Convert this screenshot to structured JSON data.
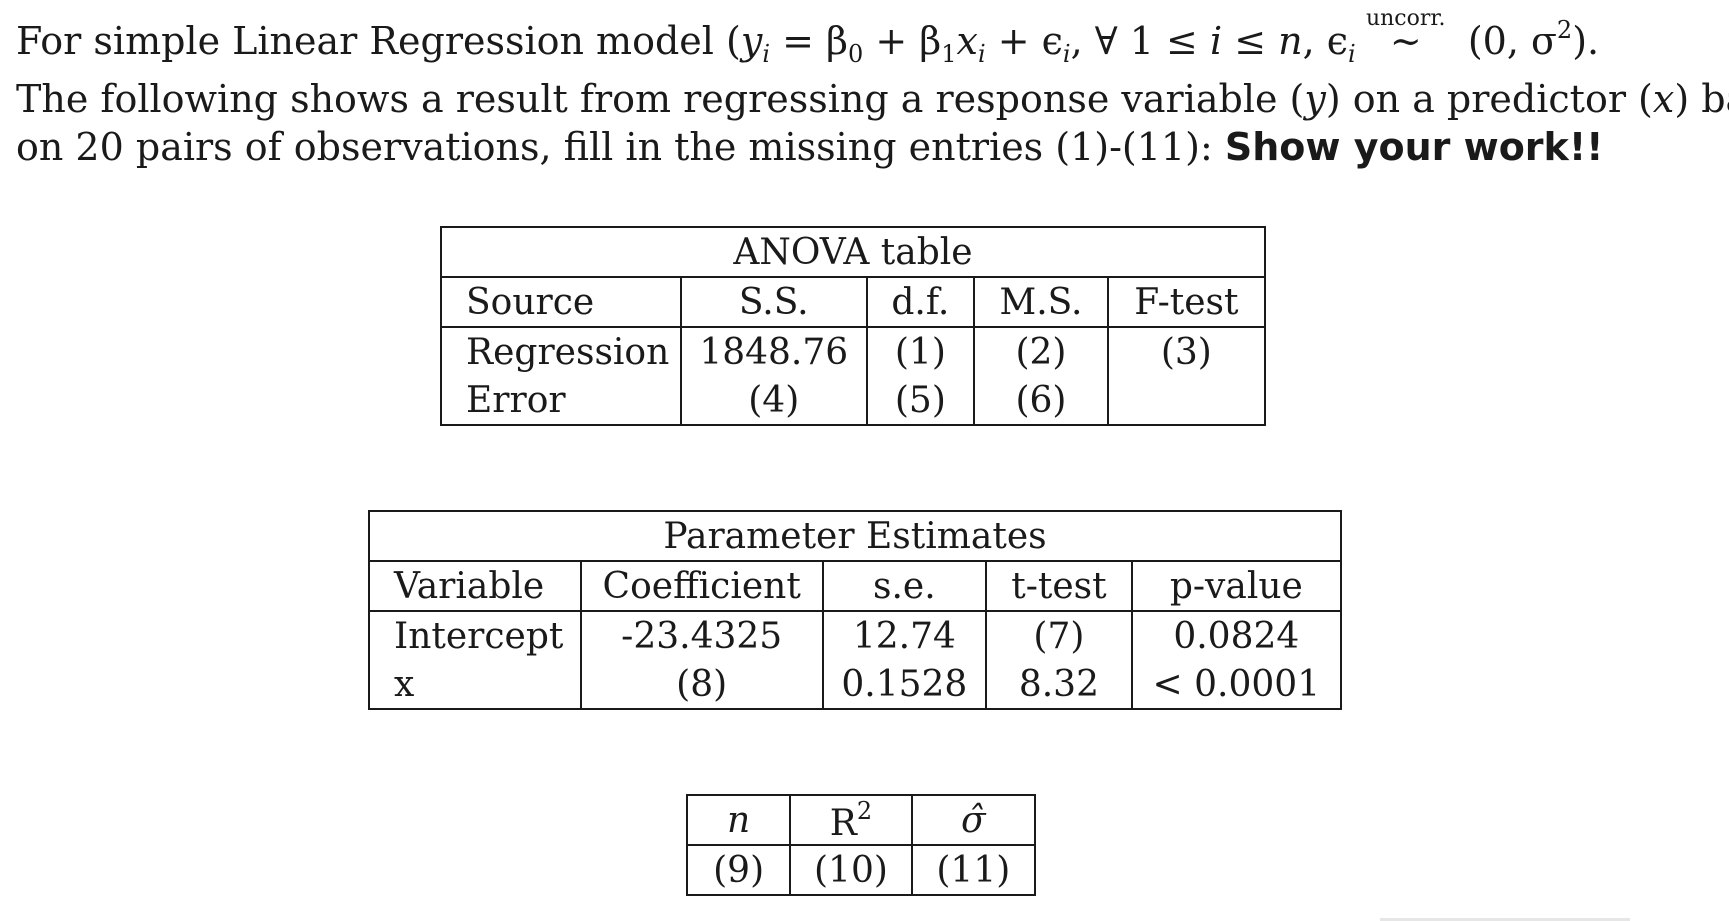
{
  "intro": {
    "line1": {
      "text": "For simple Linear Regression model (",
      "y": "y",
      "sub_i": "i",
      "eq": " = β",
      "sub0": "0",
      "plus1": " + β",
      "sub1": "1",
      "x": "x",
      "sub_i2": "i",
      "plus2": " + ϵ",
      "sub_i3": "i",
      "forall": ", ∀ 1 ≤ ",
      "i": "i",
      "le": " ≤ ",
      "n": "n",
      "comma": ", ϵ",
      "sub_i4": "i",
      "uncorr": "uncorr.",
      "tilde": "∼",
      "dist": " (0, σ",
      "sup2": "2",
      "close": ")."
    },
    "line2": {
      "a": "The following shows a result from regressing a response variable (",
      "y": "y",
      "b": ") on a predictor (",
      "x": "x",
      "c": ") based"
    },
    "line3": {
      "a": "on 20 pairs of observations, fill in the missing entries (1)-(11): ",
      "bold": "Show your work!!"
    }
  },
  "anova": {
    "caption": "ANOVA table",
    "headers": [
      "Source",
      "S.S.",
      "d.f.",
      "M.S.",
      "F-test"
    ],
    "rows": [
      [
        "Regression",
        "1848.76",
        "(1)",
        "(2)",
        "(3)"
      ],
      [
        "Error",
        "(4)",
        "(5)",
        "(6)",
        ""
      ]
    ]
  },
  "params": {
    "caption": "Parameter Estimates",
    "headers": [
      "Variable",
      "Coefficient",
      "s.e.",
      "t-test",
      "p-value"
    ],
    "rows": [
      [
        "Intercept",
        "-23.4325",
        "12.74",
        "(7)",
        "0.0824"
      ],
      [
        "x",
        "(8)",
        "0.1528",
        "8.32",
        "< 0.0001"
      ]
    ]
  },
  "summary": {
    "headers": [
      "n",
      "R",
      "2",
      "σ̂"
    ],
    "values": [
      "(9)",
      "(10)",
      "(11)"
    ]
  }
}
